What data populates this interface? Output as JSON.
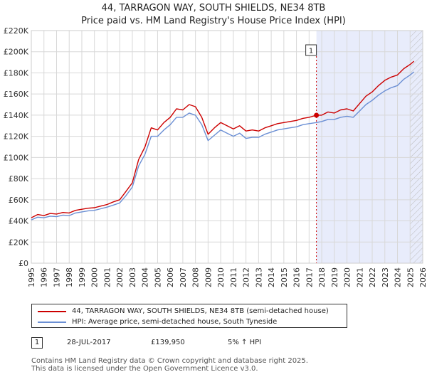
{
  "chart_data": {
    "type": "line",
    "title": "44, TARRAGON WAY, SOUTH SHIELDS, NE34 8TB",
    "subtitle": "Price paid vs. HM Land Registry's House Price Index (HPI)",
    "xlabel": "",
    "ylabel": "",
    "xlim": [
      1995,
      2026
    ],
    "ylim": [
      0,
      220000
    ],
    "y_ticks": [
      0,
      20000,
      40000,
      60000,
      80000,
      100000,
      120000,
      140000,
      160000,
      180000,
      200000,
      220000
    ],
    "y_tick_labels": [
      "£0",
      "£20K",
      "£40K",
      "£60K",
      "£80K",
      "£100K",
      "£120K",
      "£140K",
      "£160K",
      "£180K",
      "£200K",
      "£220K"
    ],
    "x_ticks": [
      1995,
      1996,
      1997,
      1998,
      1999,
      2000,
      2001,
      2002,
      2003,
      2004,
      2005,
      2006,
      2007,
      2008,
      2009,
      2010,
      2011,
      2012,
      2013,
      2014,
      2015,
      2016,
      2017,
      2018,
      2019,
      2020,
      2021,
      2022,
      2023,
      2024,
      2025,
      2026
    ],
    "x_tick_labels": [
      "1995",
      "1996",
      "1997",
      "1998",
      "1999",
      "2000",
      "2001",
      "2002",
      "2003",
      "2004",
      "2005",
      "2006",
      "2007",
      "2008",
      "2009",
      "2010",
      "2011",
      "2012",
      "2013",
      "2014",
      "2015",
      "2016",
      "2017",
      "2018",
      "2019",
      "2020",
      "2021",
      "2022",
      "2023",
      "2024",
      "2025",
      "2026"
    ],
    "grid": true,
    "series": [
      {
        "name": "44, TARRAGON WAY, SOUTH SHIELDS, NE34 8TB (semi-detached house)",
        "color": "#cc0000",
        "x": [
          1995.0,
          1995.5,
          1996.0,
          1996.5,
          1997.0,
          1997.5,
          1998.0,
          1998.5,
          1999.0,
          1999.5,
          2000.0,
          2000.5,
          2001.0,
          2001.5,
          2002.0,
          2002.5,
          2003.0,
          2003.5,
          2004.0,
          2004.5,
          2005.0,
          2005.5,
          2006.0,
          2006.5,
          2007.0,
          2007.5,
          2008.0,
          2008.5,
          2009.0,
          2009.5,
          2010.0,
          2010.5,
          2011.0,
          2011.5,
          2012.0,
          2012.5,
          2013.0,
          2013.5,
          2014.0,
          2014.5,
          2015.0,
          2015.5,
          2016.0,
          2016.5,
          2017.0,
          2017.58,
          2018.0,
          2018.5,
          2019.0,
          2019.5,
          2020.0,
          2020.5,
          2021.0,
          2021.5,
          2022.0,
          2022.5,
          2023.0,
          2023.5,
          2024.0,
          2024.5,
          2025.0,
          2025.3
        ],
        "values": [
          43000,
          46000,
          45000,
          47000,
          46500,
          48000,
          47500,
          50000,
          51000,
          52000,
          52500,
          54000,
          55500,
          58000,
          60000,
          68000,
          76000,
          98000,
          110000,
          128000,
          126000,
          133000,
          138000,
          146000,
          145000,
          150000,
          148000,
          138000,
          122000,
          128000,
          133000,
          130000,
          127000,
          130000,
          125000,
          126000,
          125000,
          128000,
          130000,
          132000,
          133000,
          134000,
          135000,
          137000,
          138000,
          139950,
          140000,
          143000,
          142000,
          145000,
          146000,
          144000,
          151000,
          158000,
          162000,
          168000,
          173000,
          176000,
          178000,
          184000,
          188000,
          191000
        ]
      },
      {
        "name": "HPI: Average price, semi-detached house, South Tyneside",
        "color": "#6b8fd4",
        "x": [
          1995.0,
          1995.5,
          1996.0,
          1996.5,
          1997.0,
          1997.5,
          1998.0,
          1998.5,
          1999.0,
          1999.5,
          2000.0,
          2000.5,
          2001.0,
          2001.5,
          2002.0,
          2002.5,
          2003.0,
          2003.5,
          2004.0,
          2004.5,
          2005.0,
          2005.5,
          2006.0,
          2006.5,
          2007.0,
          2007.5,
          2008.0,
          2008.5,
          2009.0,
          2009.5,
          2010.0,
          2010.5,
          2011.0,
          2011.5,
          2012.0,
          2012.5,
          2013.0,
          2013.5,
          2014.0,
          2014.5,
          2015.0,
          2015.5,
          2016.0,
          2016.5,
          2017.0,
          2017.58,
          2018.0,
          2018.5,
          2019.0,
          2019.5,
          2020.0,
          2020.5,
          2021.0,
          2021.5,
          2022.0,
          2022.5,
          2023.0,
          2023.5,
          2024.0,
          2024.5,
          2025.0,
          2025.3
        ],
        "values": [
          41000,
          43500,
          43000,
          44500,
          44000,
          45500,
          45000,
          47500,
          48500,
          49500,
          50000,
          51500,
          53000,
          55000,
          57000,
          64000,
          72000,
          92000,
          103000,
          120000,
          120000,
          126000,
          131000,
          138000,
          138000,
          142000,
          140000,
          131000,
          116000,
          121000,
          126000,
          123000,
          120000,
          123000,
          118000,
          119000,
          119000,
          122000,
          124000,
          126000,
          127000,
          128000,
          129000,
          131000,
          132000,
          133000,
          134000,
          136000,
          136000,
          138000,
          139000,
          138000,
          144000,
          150000,
          154000,
          159000,
          163000,
          166000,
          168000,
          174000,
          178000,
          181000
        ]
      }
    ],
    "shaded_region": {
      "from": 2017.58,
      "to": 2026,
      "color": "#e8ecfb"
    },
    "hatched_region": {
      "from": 2025.0,
      "to": 2026
    },
    "annotations": [
      {
        "label": "1",
        "x": 2017.58,
        "y": 139950,
        "color": "#cc0000"
      }
    ]
  },
  "legend": {
    "property": "44, TARRAGON WAY, SOUTH SHIELDS, NE34 8TB (semi-detached house)",
    "hpi": "HPI: Average price, semi-detached house, South Tyneside"
  },
  "transaction": {
    "badge": "1",
    "date": "28-JUL-2017",
    "price": "£139,950",
    "hpi_change": "5% ↑ HPI"
  },
  "footer": {
    "line1": "Contains HM Land Registry data © Crown copyright and database right 2025.",
    "line2": "This data is licensed under the Open Government Licence v3.0."
  }
}
